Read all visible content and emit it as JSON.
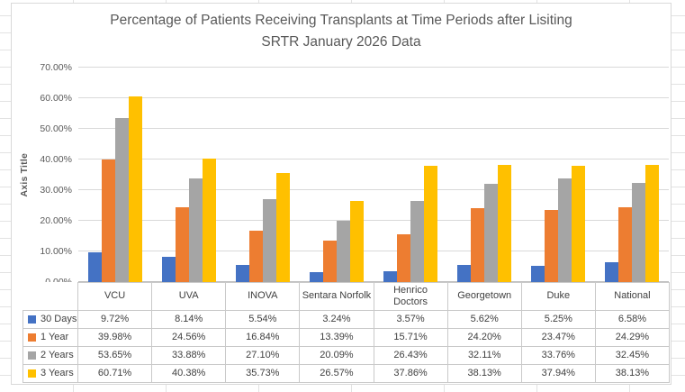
{
  "chart_data": {
    "type": "bar",
    "title_line1": "Percentage of Patients Receiving Transplants at Time Periods after Lisiting",
    "title_line2": "SRTR January 2026 Data",
    "ylabel": "Axis Title",
    "xlabel": "",
    "ylim": [
      0,
      70
    ],
    "ytick_labels": [
      "0.00%",
      "10.00%",
      "20.00%",
      "30.00%",
      "40.00%",
      "50.00%",
      "60.00%",
      "70.00%"
    ],
    "grid": true,
    "legend_position": "data-table-left-column",
    "categories": [
      "VCU",
      "UVA",
      "INOVA",
      "Sentara Norfolk",
      "Henrico Doctors",
      "Georgetown",
      "Duke",
      "National"
    ],
    "series": [
      {
        "name": "30 Days",
        "color": "#4472C4",
        "values": [
          9.72,
          8.14,
          5.54,
          3.24,
          3.57,
          5.62,
          5.25,
          6.58
        ],
        "labels": [
          "9.72%",
          "8.14%",
          "5.54%",
          "3.24%",
          "3.57%",
          "5.62%",
          "5.25%",
          "6.58%"
        ]
      },
      {
        "name": "1 Year",
        "color": "#ED7D31",
        "values": [
          39.98,
          24.56,
          16.84,
          13.39,
          15.71,
          24.2,
          23.47,
          24.29
        ],
        "labels": [
          "39.98%",
          "24.56%",
          "16.84%",
          "13.39%",
          "15.71%",
          "24.20%",
          "23.47%",
          "24.29%"
        ]
      },
      {
        "name": "2 Years",
        "color": "#A5A5A5",
        "values": [
          53.65,
          33.88,
          27.1,
          20.09,
          26.43,
          32.11,
          33.76,
          32.45
        ],
        "labels": [
          "53.65%",
          "33.88%",
          "27.10%",
          "20.09%",
          "26.43%",
          "32.11%",
          "33.76%",
          "32.45%"
        ]
      },
      {
        "name": "3 Years",
        "color": "#FFC000",
        "values": [
          60.71,
          40.38,
          35.73,
          26.57,
          37.86,
          38.13,
          37.94,
          38.13
        ],
        "labels": [
          "60.71%",
          "40.38%",
          "35.73%",
          "26.57%",
          "37.86%",
          "38.13%",
          "37.94%",
          "38.13%"
        ]
      }
    ],
    "colors": {
      "gridline": "#D9D9D9",
      "axis_text": "#595959",
      "table_text": "#404040",
      "table_border": "#C9C9C9"
    }
  }
}
